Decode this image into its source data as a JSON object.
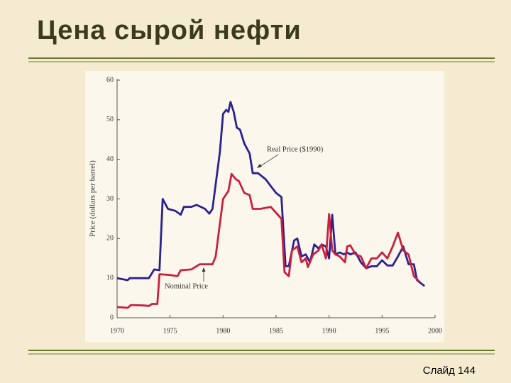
{
  "chart_data": {
    "type": "line",
    "title": "Цена сырой нефти",
    "ylabel": "Price (dollars per barrel)",
    "xlim": [
      1970,
      2000
    ],
    "xticks": [
      1970,
      1975,
      1980,
      1985,
      1990,
      1995,
      2000
    ],
    "ylim": [
      0,
      60
    ],
    "yticks": [
      0,
      10,
      20,
      30,
      40,
      50,
      60
    ],
    "series": [
      {
        "name": "Real Price ($1990)",
        "color": "#2b2191",
        "x": [
          1970,
          1971,
          1971.2,
          1973,
          1973.5,
          1974,
          1974.3,
          1974.8,
          1975.5,
          1976,
          1976.3,
          1977,
          1977.5,
          1978.3,
          1978.7,
          1979,
          1979.7,
          1980,
          1980.3,
          1980.5,
          1980.7,
          1981,
          1981.3,
          1981.6,
          1982,
          1982.5,
          1982.8,
          1983.3,
          1984,
          1985,
          1985.5,
          1985.9,
          1986.2,
          1986.7,
          1987,
          1987.4,
          1987.8,
          1988.2,
          1988.6,
          1989,
          1989.3,
          1989.7,
          1990,
          1990.3,
          1990.6,
          1991,
          1991.4,
          1991.7,
          1992,
          1992.5,
          1993,
          1993.5,
          1994,
          1994.5,
          1995,
          1995.5,
          1996,
          1996.5,
          1997,
          1997.5,
          1998,
          1998.3,
          1999
        ],
        "values": [
          10,
          9.5,
          10,
          10,
          12.2,
          12,
          30,
          27.5,
          27,
          26,
          28,
          28,
          28.5,
          27.5,
          26.3,
          27.5,
          42,
          51.5,
          52.5,
          52,
          54.5,
          52,
          48,
          47.5,
          44,
          41.5,
          36.5,
          36.5,
          35,
          31.5,
          30.5,
          13,
          13,
          19.5,
          20,
          15.5,
          16,
          14,
          18.5,
          17.5,
          18.5,
          18,
          15,
          26,
          16,
          16.5,
          16,
          16.5,
          16,
          16.5,
          14,
          12.5,
          13,
          13,
          14.5,
          13.2,
          13.2,
          15.5,
          18,
          13.5,
          13.5,
          9.5,
          8
        ]
      },
      {
        "name": "Nominal Price",
        "color": "#c8203f",
        "x": [
          1970,
          1971,
          1971.3,
          1972.5,
          1973,
          1973.3,
          1973.8,
          1974,
          1975,
          1975.7,
          1976,
          1977,
          1977.8,
          1979,
          1979.3,
          1980,
          1980.5,
          1980.8,
          1981.2,
          1981.5,
          1982,
          1982.5,
          1982.8,
          1983.5,
          1984.5,
          1985,
          1985.5,
          1985.8,
          1986.2,
          1986.5,
          1987,
          1987.4,
          1987.8,
          1988,
          1988.5,
          1989,
          1989.3,
          1989.7,
          1990,
          1990.3,
          1990.6,
          1991,
          1991.5,
          1991.7,
          1992,
          1992.5,
          1993,
          1993.5,
          1994,
          1994.5,
          1995,
          1995.5,
          1996,
          1996.5,
          1997,
          1997.5,
          1998,
          1998.5
        ],
        "values": [
          2.7,
          2.5,
          3.2,
          3.1,
          3,
          3.5,
          3.5,
          11,
          10.8,
          10.5,
          12,
          12.2,
          13.5,
          13.5,
          15.5,
          30,
          32,
          36.3,
          35,
          34.5,
          31.5,
          31,
          27.5,
          27.5,
          28,
          26.5,
          25,
          11.5,
          10.5,
          17,
          18,
          14,
          15,
          12.8,
          16,
          17,
          18.5,
          15,
          26.2,
          17,
          16,
          15.5,
          14,
          18,
          18.3,
          16,
          15.5,
          12.5,
          15,
          15,
          16.5,
          15,
          18,
          21.5,
          17,
          16,
          10.5,
          9.2
        ]
      }
    ]
  },
  "footer": "Слайд 144"
}
